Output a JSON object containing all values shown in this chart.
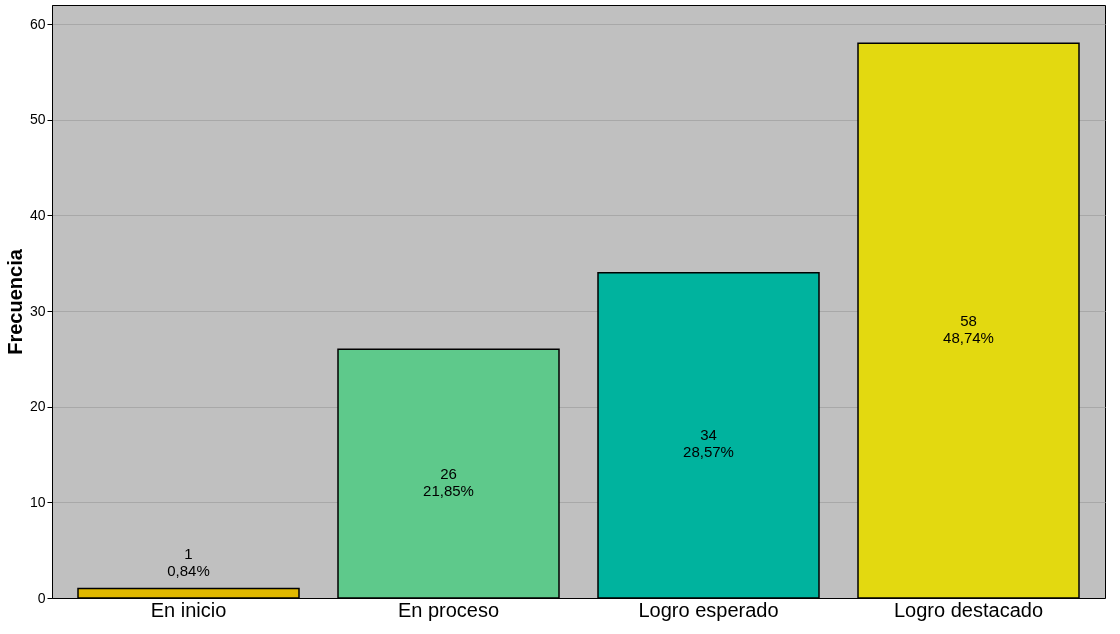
{
  "chart_data": {
    "type": "bar",
    "ylabel": "Frecuencia",
    "categories": [
      "En inicio",
      "En proceso",
      "Logro esperado",
      "Logro destacado"
    ],
    "values": [
      1,
      26,
      34,
      58
    ],
    "colors": [
      "#e0b800",
      "#5ec98b",
      "#00b39e",
      "#e3d910"
    ],
    "value_labels": [
      "1\n0,84%",
      "26\n21,85%",
      "34\n28,57%",
      "58\n48,74%"
    ],
    "ylim": [
      0,
      62
    ],
    "yticks": [
      0,
      10,
      20,
      30,
      40,
      50,
      60
    ],
    "grid": "y",
    "legend": false
  }
}
